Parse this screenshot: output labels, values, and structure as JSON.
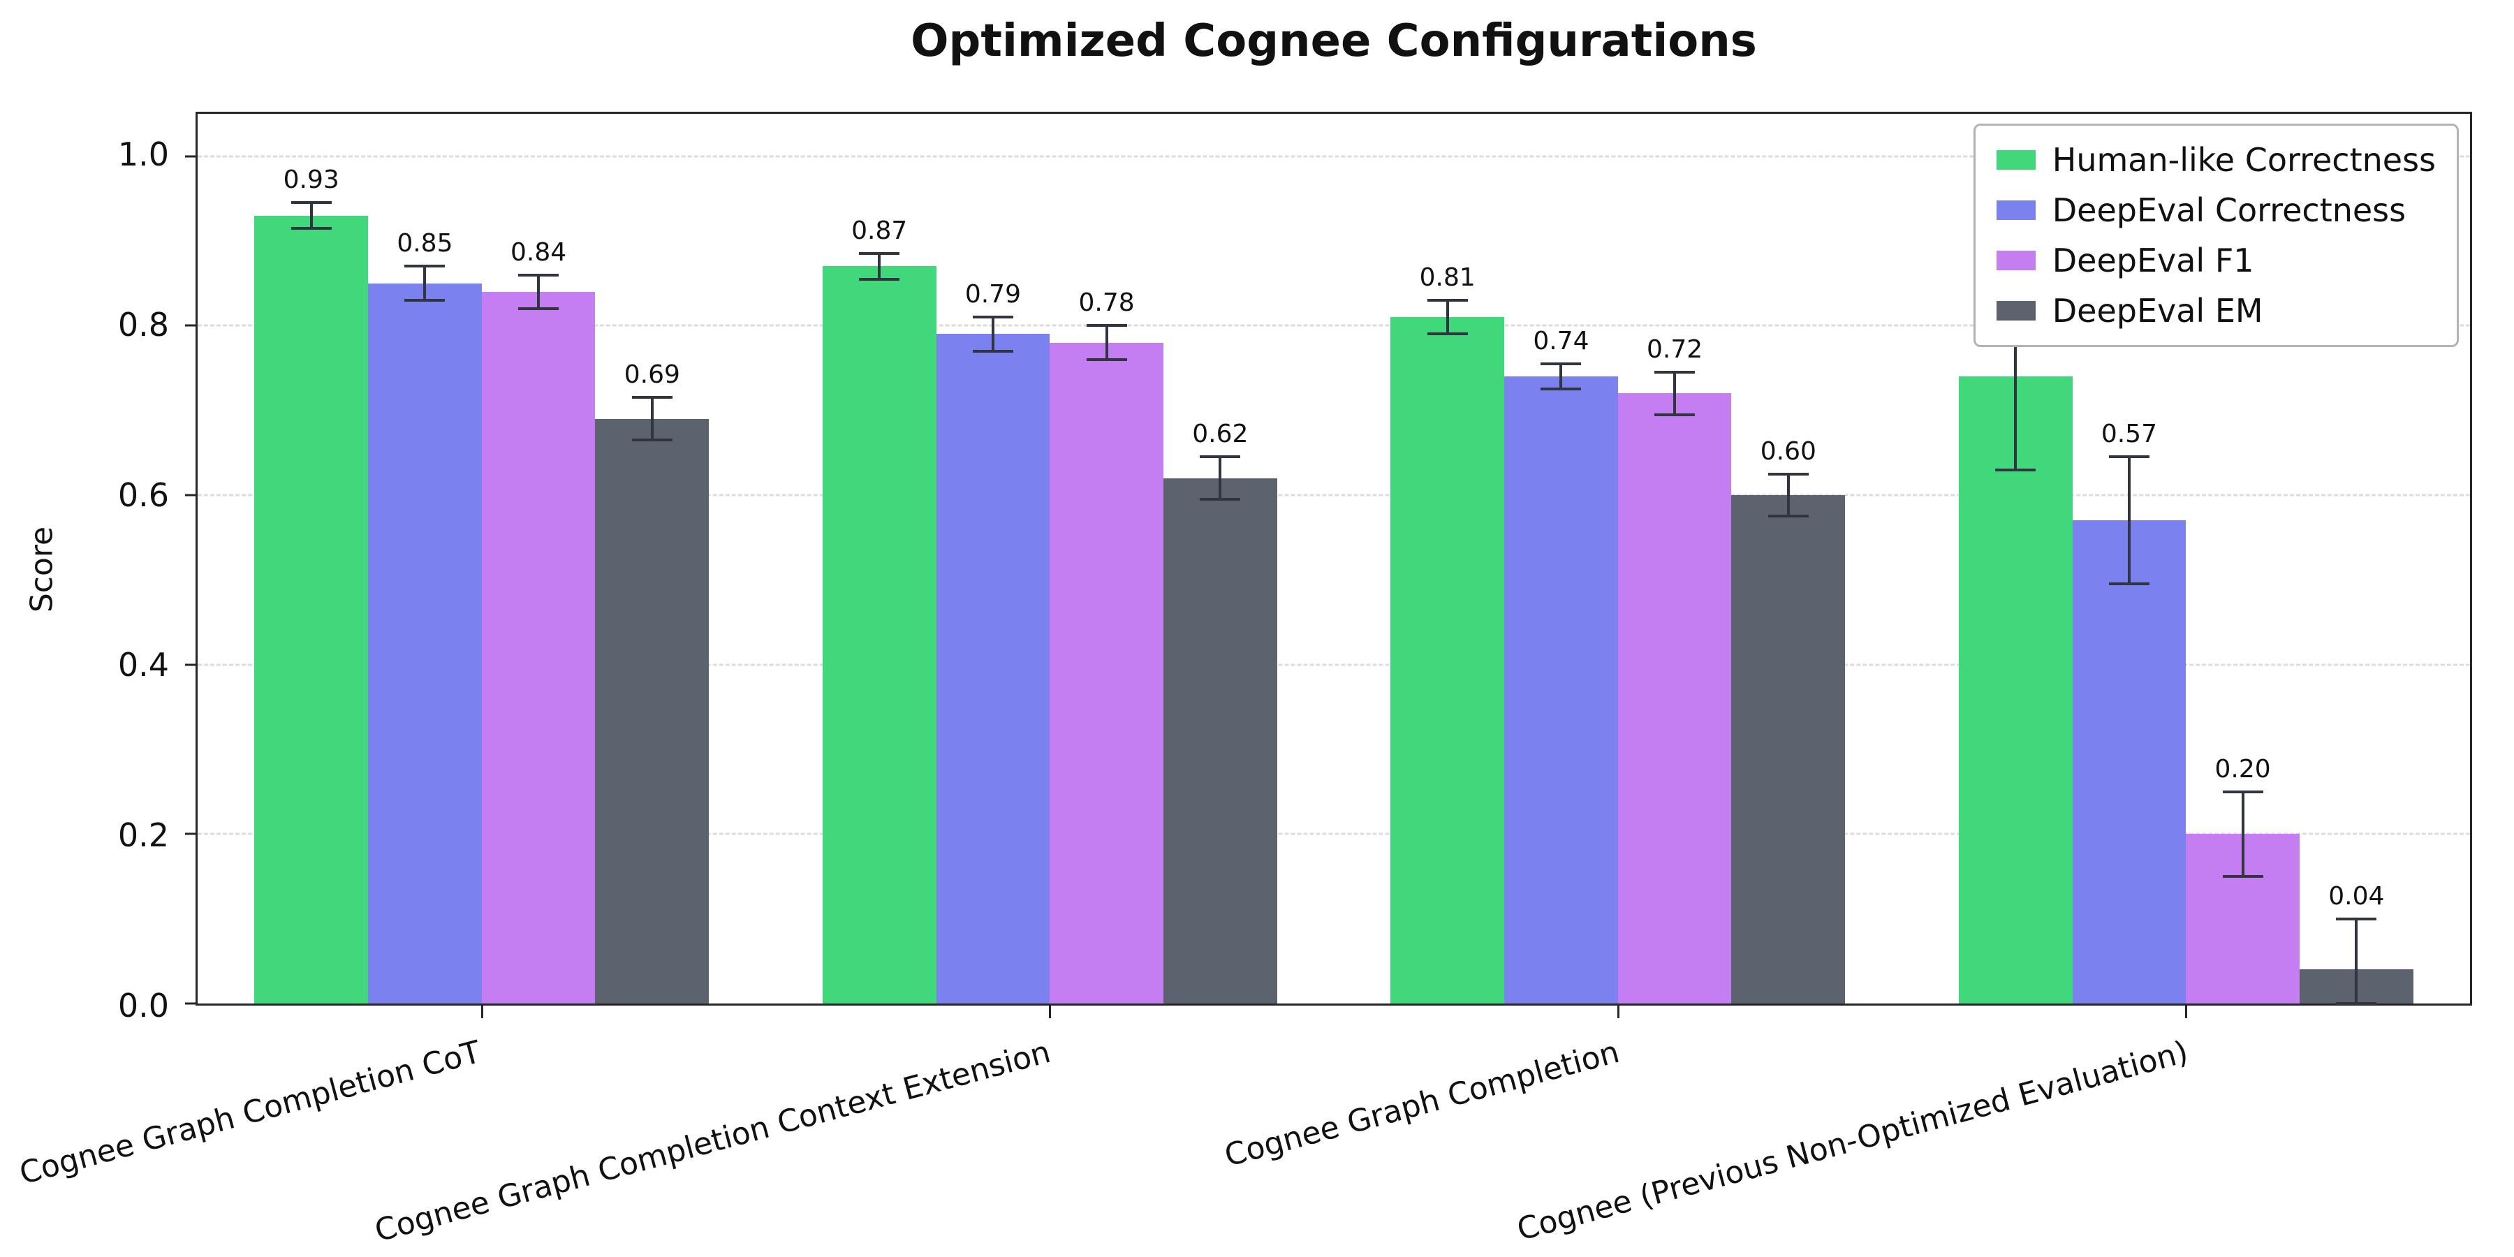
{
  "chart_data": {
    "type": "bar",
    "title": "Optimized Cognee Configurations",
    "xlabel": "",
    "ylabel": "Score",
    "ylim": [
      0,
      1.05
    ],
    "yticks": [
      0.0,
      0.2,
      0.4,
      0.6,
      0.8,
      1.0
    ],
    "grid": "horizontal-dashed",
    "legend_position": "upper-right",
    "error_bar_color": "#31353f",
    "categories": [
      "Cognee Graph Completion CoT",
      "Cognee Graph Completion Context Extension",
      "Cognee Graph Completion",
      "Cognee (Previous Non-Optimized Evaluation)"
    ],
    "series": [
      {
        "name": "Human-like Correctness",
        "color": "#41d87b",
        "values": [
          0.93,
          0.87,
          0.81,
          0.74
        ],
        "errors": [
          0.015,
          0.015,
          0.02,
          0.11
        ],
        "labels": [
          "0.93",
          "0.87",
          "0.81",
          "0.74"
        ]
      },
      {
        "name": "DeepEval Correctness",
        "color": "#7b82f0",
        "values": [
          0.85,
          0.79,
          0.74,
          0.57
        ],
        "errors": [
          0.02,
          0.02,
          0.015,
          0.075
        ],
        "labels": [
          "0.85",
          "0.79",
          "0.74",
          "0.57"
        ]
      },
      {
        "name": "DeepEval F1",
        "color": "#c47ef2",
        "values": [
          0.84,
          0.78,
          0.72,
          0.2
        ],
        "errors": [
          0.02,
          0.02,
          0.025,
          0.05
        ],
        "labels": [
          "0.84",
          "0.78",
          "0.72",
          "0.20"
        ]
      },
      {
        "name": "DeepEval EM",
        "color": "#5c626e",
        "values": [
          0.69,
          0.62,
          0.6,
          0.04
        ],
        "errors": [
          0.025,
          0.025,
          0.025,
          0.06
        ],
        "labels": [
          "0.69",
          "0.62",
          "0.60",
          "0.04"
        ]
      }
    ]
  }
}
